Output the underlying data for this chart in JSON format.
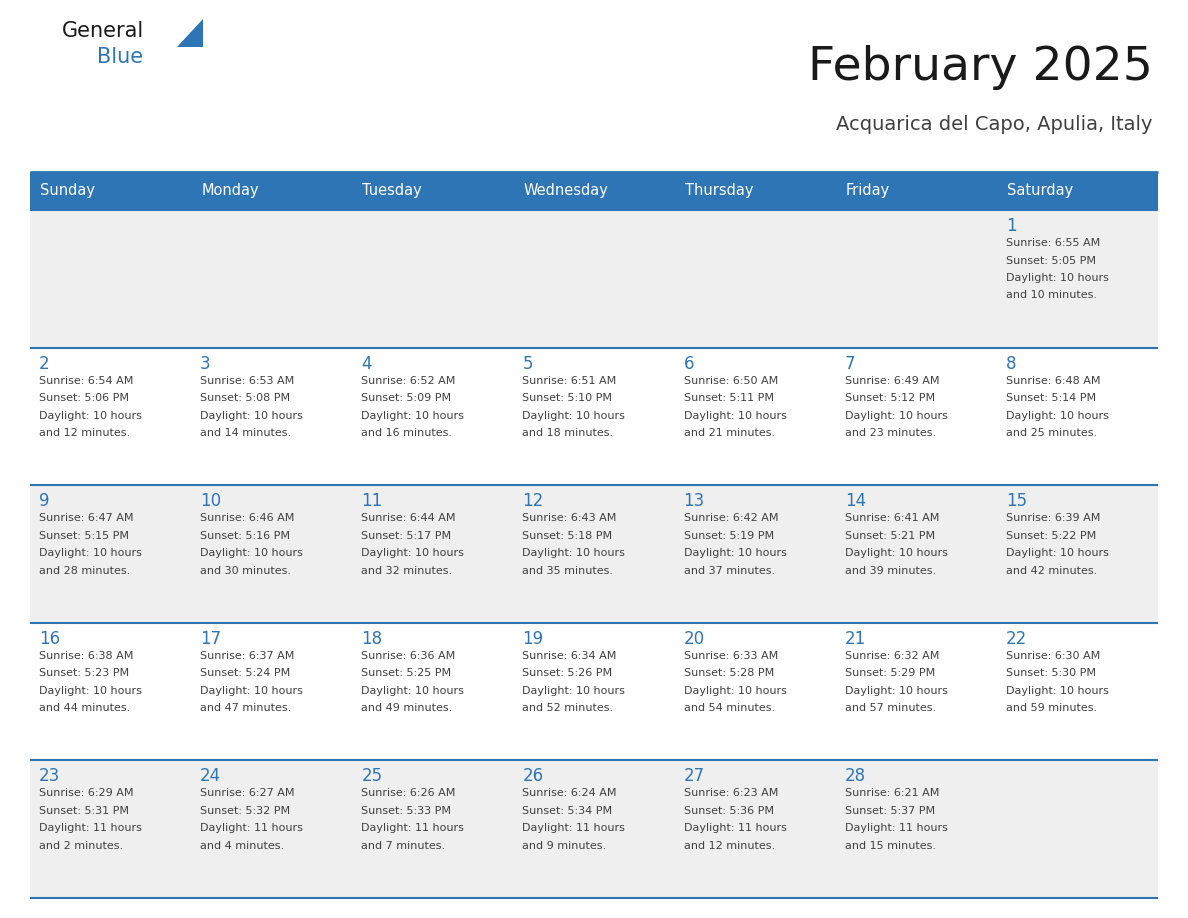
{
  "title": "February 2025",
  "subtitle": "Acquarica del Capo, Apulia, Italy",
  "header_bg": "#2E75B6",
  "header_text_color": "#FFFFFF",
  "cell_bg_white": "#FFFFFF",
  "cell_bg_gray": "#EFEFEF",
  "border_color": "#2E75B6",
  "day_number_color": "#2E75B6",
  "info_text_color": "#404040",
  "days_of_week": [
    "Sunday",
    "Monday",
    "Tuesday",
    "Wednesday",
    "Thursday",
    "Friday",
    "Saturday"
  ],
  "weeks": [
    [
      {
        "day": "",
        "sunrise": "",
        "sunset": "",
        "daylight": ""
      },
      {
        "day": "",
        "sunrise": "",
        "sunset": "",
        "daylight": ""
      },
      {
        "day": "",
        "sunrise": "",
        "sunset": "",
        "daylight": ""
      },
      {
        "day": "",
        "sunrise": "",
        "sunset": "",
        "daylight": ""
      },
      {
        "day": "",
        "sunrise": "",
        "sunset": "",
        "daylight": ""
      },
      {
        "day": "",
        "sunrise": "",
        "sunset": "",
        "daylight": ""
      },
      {
        "day": "1",
        "sunrise": "6:55 AM",
        "sunset": "5:05 PM",
        "daylight": "10 hours\nand 10 minutes."
      }
    ],
    [
      {
        "day": "2",
        "sunrise": "6:54 AM",
        "sunset": "5:06 PM",
        "daylight": "10 hours\nand 12 minutes."
      },
      {
        "day": "3",
        "sunrise": "6:53 AM",
        "sunset": "5:08 PM",
        "daylight": "10 hours\nand 14 minutes."
      },
      {
        "day": "4",
        "sunrise": "6:52 AM",
        "sunset": "5:09 PM",
        "daylight": "10 hours\nand 16 minutes."
      },
      {
        "day": "5",
        "sunrise": "6:51 AM",
        "sunset": "5:10 PM",
        "daylight": "10 hours\nand 18 minutes."
      },
      {
        "day": "6",
        "sunrise": "6:50 AM",
        "sunset": "5:11 PM",
        "daylight": "10 hours\nand 21 minutes."
      },
      {
        "day": "7",
        "sunrise": "6:49 AM",
        "sunset": "5:12 PM",
        "daylight": "10 hours\nand 23 minutes."
      },
      {
        "day": "8",
        "sunrise": "6:48 AM",
        "sunset": "5:14 PM",
        "daylight": "10 hours\nand 25 minutes."
      }
    ],
    [
      {
        "day": "9",
        "sunrise": "6:47 AM",
        "sunset": "5:15 PM",
        "daylight": "10 hours\nand 28 minutes."
      },
      {
        "day": "10",
        "sunrise": "6:46 AM",
        "sunset": "5:16 PM",
        "daylight": "10 hours\nand 30 minutes."
      },
      {
        "day": "11",
        "sunrise": "6:44 AM",
        "sunset": "5:17 PM",
        "daylight": "10 hours\nand 32 minutes."
      },
      {
        "day": "12",
        "sunrise": "6:43 AM",
        "sunset": "5:18 PM",
        "daylight": "10 hours\nand 35 minutes."
      },
      {
        "day": "13",
        "sunrise": "6:42 AM",
        "sunset": "5:19 PM",
        "daylight": "10 hours\nand 37 minutes."
      },
      {
        "day": "14",
        "sunrise": "6:41 AM",
        "sunset": "5:21 PM",
        "daylight": "10 hours\nand 39 minutes."
      },
      {
        "day": "15",
        "sunrise": "6:39 AM",
        "sunset": "5:22 PM",
        "daylight": "10 hours\nand 42 minutes."
      }
    ],
    [
      {
        "day": "16",
        "sunrise": "6:38 AM",
        "sunset": "5:23 PM",
        "daylight": "10 hours\nand 44 minutes."
      },
      {
        "day": "17",
        "sunrise": "6:37 AM",
        "sunset": "5:24 PM",
        "daylight": "10 hours\nand 47 minutes."
      },
      {
        "day": "18",
        "sunrise": "6:36 AM",
        "sunset": "5:25 PM",
        "daylight": "10 hours\nand 49 minutes."
      },
      {
        "day": "19",
        "sunrise": "6:34 AM",
        "sunset": "5:26 PM",
        "daylight": "10 hours\nand 52 minutes."
      },
      {
        "day": "20",
        "sunrise": "6:33 AM",
        "sunset": "5:28 PM",
        "daylight": "10 hours\nand 54 minutes."
      },
      {
        "day": "21",
        "sunrise": "6:32 AM",
        "sunset": "5:29 PM",
        "daylight": "10 hours\nand 57 minutes."
      },
      {
        "day": "22",
        "sunrise": "6:30 AM",
        "sunset": "5:30 PM",
        "daylight": "10 hours\nand 59 minutes."
      }
    ],
    [
      {
        "day": "23",
        "sunrise": "6:29 AM",
        "sunset": "5:31 PM",
        "daylight": "11 hours\nand 2 minutes."
      },
      {
        "day": "24",
        "sunrise": "6:27 AM",
        "sunset": "5:32 PM",
        "daylight": "11 hours\nand 4 minutes."
      },
      {
        "day": "25",
        "sunrise": "6:26 AM",
        "sunset": "5:33 PM",
        "daylight": "11 hours\nand 7 minutes."
      },
      {
        "day": "26",
        "sunrise": "6:24 AM",
        "sunset": "5:34 PM",
        "daylight": "11 hours\nand 9 minutes."
      },
      {
        "day": "27",
        "sunrise": "6:23 AM",
        "sunset": "5:36 PM",
        "daylight": "11 hours\nand 12 minutes."
      },
      {
        "day": "28",
        "sunrise": "6:21 AM",
        "sunset": "5:37 PM",
        "daylight": "11 hours\nand 15 minutes."
      },
      {
        "day": "",
        "sunrise": "",
        "sunset": "",
        "daylight": ""
      }
    ]
  ],
  "logo_text1": "General",
  "logo_text2": "Blue",
  "logo_text1_color": "#1a1a1a",
  "logo_text2_color": "#2E75B6",
  "title_color": "#1a1a1a",
  "subtitle_color": "#404040",
  "row_bg_colors": [
    "#EFEFEF",
    "#FFFFFF",
    "#EFEFEF",
    "#FFFFFF",
    "#EFEFEF"
  ]
}
